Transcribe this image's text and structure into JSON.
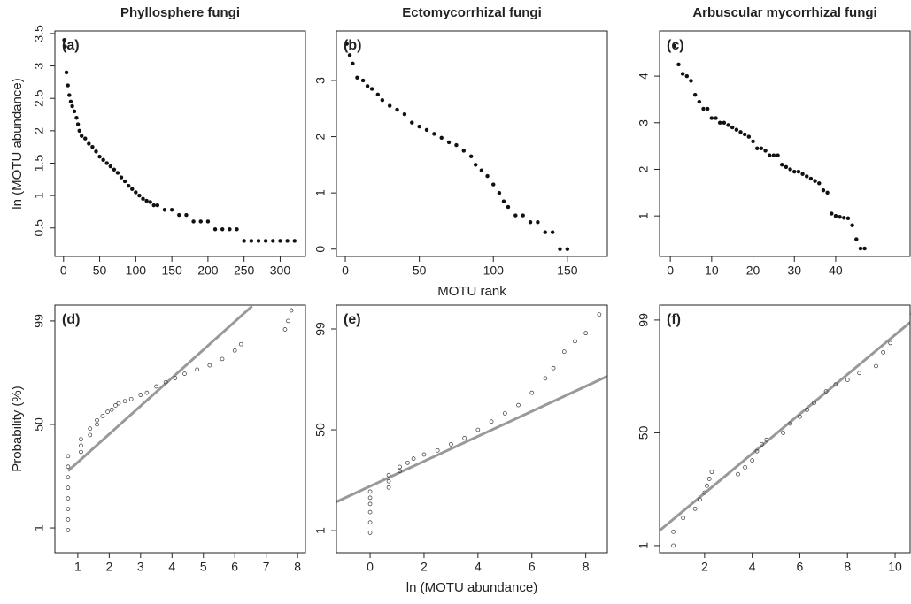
{
  "chart_data": [
    {
      "type": "scatter",
      "title": "Phyllosphere fungi",
      "tag": "(a)",
      "ylabel": "ln (MOTU abundance)",
      "color": "#111",
      "marker_fill": true,
      "x": [
        1,
        2,
        4,
        6,
        8,
        10,
        12,
        15,
        18,
        20,
        22,
        25,
        30,
        35,
        40,
        45,
        50,
        55,
        60,
        65,
        70,
        75,
        80,
        85,
        90,
        95,
        100,
        105,
        110,
        115,
        120,
        125,
        130,
        140,
        150,
        160,
        170,
        180,
        190,
        200,
        210,
        220,
        230,
        240,
        250,
        260,
        270,
        280,
        290,
        300,
        310,
        320
      ],
      "values": [
        3.4,
        3.3,
        2.9,
        2.7,
        2.55,
        2.45,
        2.38,
        2.3,
        2.2,
        2.1,
        2.0,
        1.92,
        1.88,
        1.8,
        1.75,
        1.68,
        1.6,
        1.55,
        1.5,
        1.45,
        1.4,
        1.35,
        1.28,
        1.22,
        1.15,
        1.1,
        1.05,
        1.0,
        0.95,
        0.92,
        0.9,
        0.85,
        0.85,
        0.78,
        0.78,
        0.7,
        0.7,
        0.6,
        0.6,
        0.6,
        0.48,
        0.48,
        0.48,
        0.48,
        0.3,
        0.3,
        0.3,
        0.3,
        0.3,
        0.3,
        0.3,
        0.3
      ],
      "xlim": [
        -12,
        335
      ],
      "ylim": [
        0.06,
        3.54
      ],
      "xticks": [
        0,
        50,
        100,
        150,
        200,
        250,
        300
      ],
      "yticks": [
        0.5,
        1,
        1.5,
        2,
        2.5,
        3,
        3.5
      ]
    },
    {
      "type": "scatter",
      "title": "Ectomycorrhizal fungi",
      "tag": "(b)",
      "xlabel": "MOTU rank",
      "color": "#111",
      "marker_fill": true,
      "x": [
        1,
        3,
        5,
        8,
        12,
        15,
        18,
        22,
        25,
        30,
        35,
        40,
        45,
        50,
        55,
        60,
        65,
        70,
        75,
        80,
        85,
        88,
        92,
        96,
        100,
        104,
        107,
        110,
        115,
        120,
        125,
        130,
        135,
        140,
        145,
        150
      ],
      "values": [
        3.65,
        3.45,
        3.3,
        3.05,
        3.0,
        2.9,
        2.85,
        2.75,
        2.65,
        2.55,
        2.48,
        2.4,
        2.25,
        2.18,
        2.12,
        2.05,
        1.98,
        1.9,
        1.85,
        1.75,
        1.65,
        1.5,
        1.4,
        1.3,
        1.15,
        1.0,
        0.85,
        0.75,
        0.6,
        0.6,
        0.48,
        0.48,
        0.3,
        0.3,
        0,
        0
      ],
      "xlim": [
        -6,
        177
      ],
      "ylim": [
        -0.13,
        3.88
      ],
      "xticks": [
        0,
        50,
        100,
        150
      ],
      "yticks": [
        0,
        1,
        2,
        3
      ]
    },
    {
      "type": "scatter",
      "title": "Arbuscular mycorrhizal fungi",
      "tag": "(c)",
      "color": "#111",
      "marker_fill": true,
      "x": [
        1,
        2,
        3,
        4,
        5,
        6,
        7,
        8,
        9,
        10,
        11,
        12,
        13,
        14,
        15,
        16,
        17,
        18,
        19,
        20,
        21,
        22,
        23,
        24,
        25,
        26,
        27,
        28,
        29,
        30,
        31,
        32,
        33,
        34,
        35,
        36,
        37,
        38,
        39,
        40,
        41,
        42,
        43,
        44,
        45,
        46,
        47
      ],
      "values": [
        4.65,
        4.25,
        4.05,
        4.0,
        3.9,
        3.6,
        3.45,
        3.3,
        3.3,
        3.1,
        3.1,
        3.0,
        3.0,
        2.95,
        2.9,
        2.85,
        2.8,
        2.75,
        2.7,
        2.6,
        2.45,
        2.45,
        2.4,
        2.3,
        2.3,
        2.3,
        2.1,
        2.05,
        2.0,
        1.95,
        1.95,
        1.9,
        1.85,
        1.8,
        1.75,
        1.7,
        1.55,
        1.5,
        1.05,
        1.0,
        0.98,
        0.96,
        0.95,
        0.8,
        0.5,
        0.3,
        0.3
      ],
      "xlim": [
        -2.6,
        58
      ],
      "ylim": [
        0.13,
        4.97
      ],
      "xticks": [
        0,
        10,
        20,
        30,
        40
      ],
      "yticks": [
        1,
        2,
        3,
        4
      ]
    },
    {
      "type": "scatter",
      "tag": "(d)",
      "ylabel": "Probability (%)",
      "color": "#333",
      "marker_fill": false,
      "x": [
        0.69,
        0.69,
        0.69,
        0.69,
        0.69,
        0.69,
        0.69,
        0.69,
        1.1,
        1.1,
        1.1,
        1.39,
        1.39,
        1.61,
        1.61,
        1.79,
        1.95,
        2.08,
        2.2,
        2.3,
        2.5,
        2.7,
        3.0,
        3.2,
        3.5,
        3.8,
        4.1,
        4.4,
        4.8,
        5.2,
        5.6,
        6.0,
        6.2,
        7.6,
        7.7,
        7.8
      ],
      "values": [
        0,
        5,
        10,
        15,
        20,
        25,
        30,
        35,
        37,
        40,
        43,
        45,
        48,
        50,
        52,
        54,
        56,
        57,
        59,
        60,
        61,
        62,
        64,
        65,
        68,
        70,
        72,
        74,
        76,
        78,
        81,
        85,
        88,
        95,
        99,
        104
      ],
      "fit": {
        "x": [
          0.69,
          6.55
        ],
        "values": [
          28,
          106
        ],
        "color": "#999"
      },
      "xlim": [
        0.27,
        8.25
      ],
      "ylim": [
        -10.7,
        106.5
      ],
      "xticks": [
        1,
        2,
        3,
        4,
        5,
        6,
        7,
        8
      ],
      "yticks": [
        1,
        50,
        99
      ]
    },
    {
      "type": "scatter",
      "tag": "(e)",
      "xlabel": "ln (MOTU abundance)",
      "color": "#333",
      "marker_fill": false,
      "x": [
        0,
        0,
        0,
        0,
        0,
        0,
        0.69,
        0.69,
        0.69,
        1.1,
        1.1,
        1.39,
        1.61,
        2,
        2.5,
        3,
        3.5,
        4,
        4.5,
        5,
        5.5,
        6,
        6.5,
        6.8,
        7.2,
        7.6,
        8,
        8.5
      ],
      "values": [
        0,
        5,
        10,
        14,
        17,
        20,
        22,
        25,
        28,
        30,
        32,
        34,
        36,
        38,
        40,
        43,
        46,
        50,
        54,
        58,
        62,
        68,
        75,
        80,
        88,
        93,
        97,
        106
      ],
      "fit": {
        "x": [
          -1.25,
          8.8
        ],
        "values": [
          15,
          76
        ],
        "color": "#999"
      },
      "xlim": [
        -1.25,
        8.8
      ],
      "ylim": [
        -9.7,
        110.6
      ],
      "xticks": [
        0,
        2,
        4,
        6,
        8
      ],
      "yticks": [
        1,
        50,
        99
      ]
    },
    {
      "type": "scatter",
      "tag": "(f)",
      "color": "#333",
      "marker_fill": false,
      "x": [
        0.69,
        0.69,
        1.1,
        1.6,
        1.8,
        2.0,
        2.1,
        2.2,
        2.3,
        3.4,
        3.7,
        4.0,
        4.2,
        4.4,
        4.6,
        5.3,
        5.6,
        6.0,
        6.3,
        6.6,
        7.1,
        7.5,
        8.0,
        8.5,
        9.2,
        9.5,
        9.8,
        10.7
      ],
      "values": [
        1,
        7,
        13,
        17,
        21,
        24,
        27,
        30,
        33,
        32,
        35,
        38,
        42,
        45,
        47,
        50,
        54,
        57,
        60,
        63,
        68,
        71,
        73,
        76,
        79,
        85,
        89,
        101
      ],
      "fit": {
        "x": [
          0.11,
          10.63
        ],
        "values": [
          7.5,
          98
        ],
        "color": "#999"
      },
      "xlim": [
        0.11,
        10.63
      ],
      "ylim": [
        -2.1,
        105.5
      ],
      "xticks": [
        2,
        4,
        6,
        8,
        10
      ],
      "yticks": [
        1,
        50,
        99
      ]
    }
  ]
}
